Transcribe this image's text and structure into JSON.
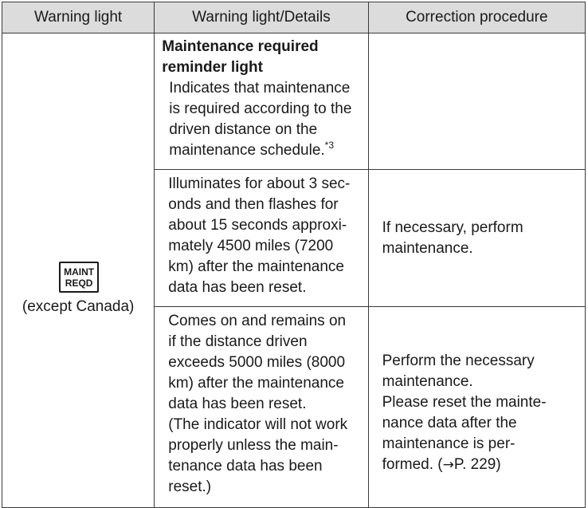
{
  "table": {
    "headers": [
      "Warning light",
      "Warning light/Details",
      "Correction procedure"
    ],
    "warning_light": {
      "badge_lines": [
        "MAINT",
        "REQD"
      ],
      "region": "(except Canada)"
    },
    "rows": [
      {
        "title_lines": [
          "Maintenance required",
          "reminder light"
        ],
        "detail_lines": [
          "Indicates that maintenance",
          "is required according to the",
          "driven distance on the",
          "maintenance schedule."
        ],
        "footnote": "*3",
        "correction_lines": []
      },
      {
        "detail_lines": [
          "Illuminates for about 3 sec-",
          "onds and then flashes for",
          "about 15 seconds approxi-",
          "mately 4500 miles (7200",
          "km) after the maintenance",
          "data has been reset."
        ],
        "correction_lines": [
          "If necessary, perform",
          "maintenance."
        ]
      },
      {
        "detail_lines": [
          "Comes on and remains on",
          "if the distance driven",
          "exceeds 5000 miles (8000",
          "km) after the maintenance",
          "data has been reset.",
          "(The indicator will not work",
          "properly unless the main-",
          "tenance data has been",
          "reset.)"
        ],
        "correction_lines": [
          "Perform the necessary",
          "maintenance.",
          "Please reset the mainte-",
          "nance data after the",
          "maintenance is per-"
        ],
        "correction_last": {
          "prefix": "formed. (",
          "arrow": "→",
          "suffix": "P. 229)"
        }
      }
    ]
  }
}
